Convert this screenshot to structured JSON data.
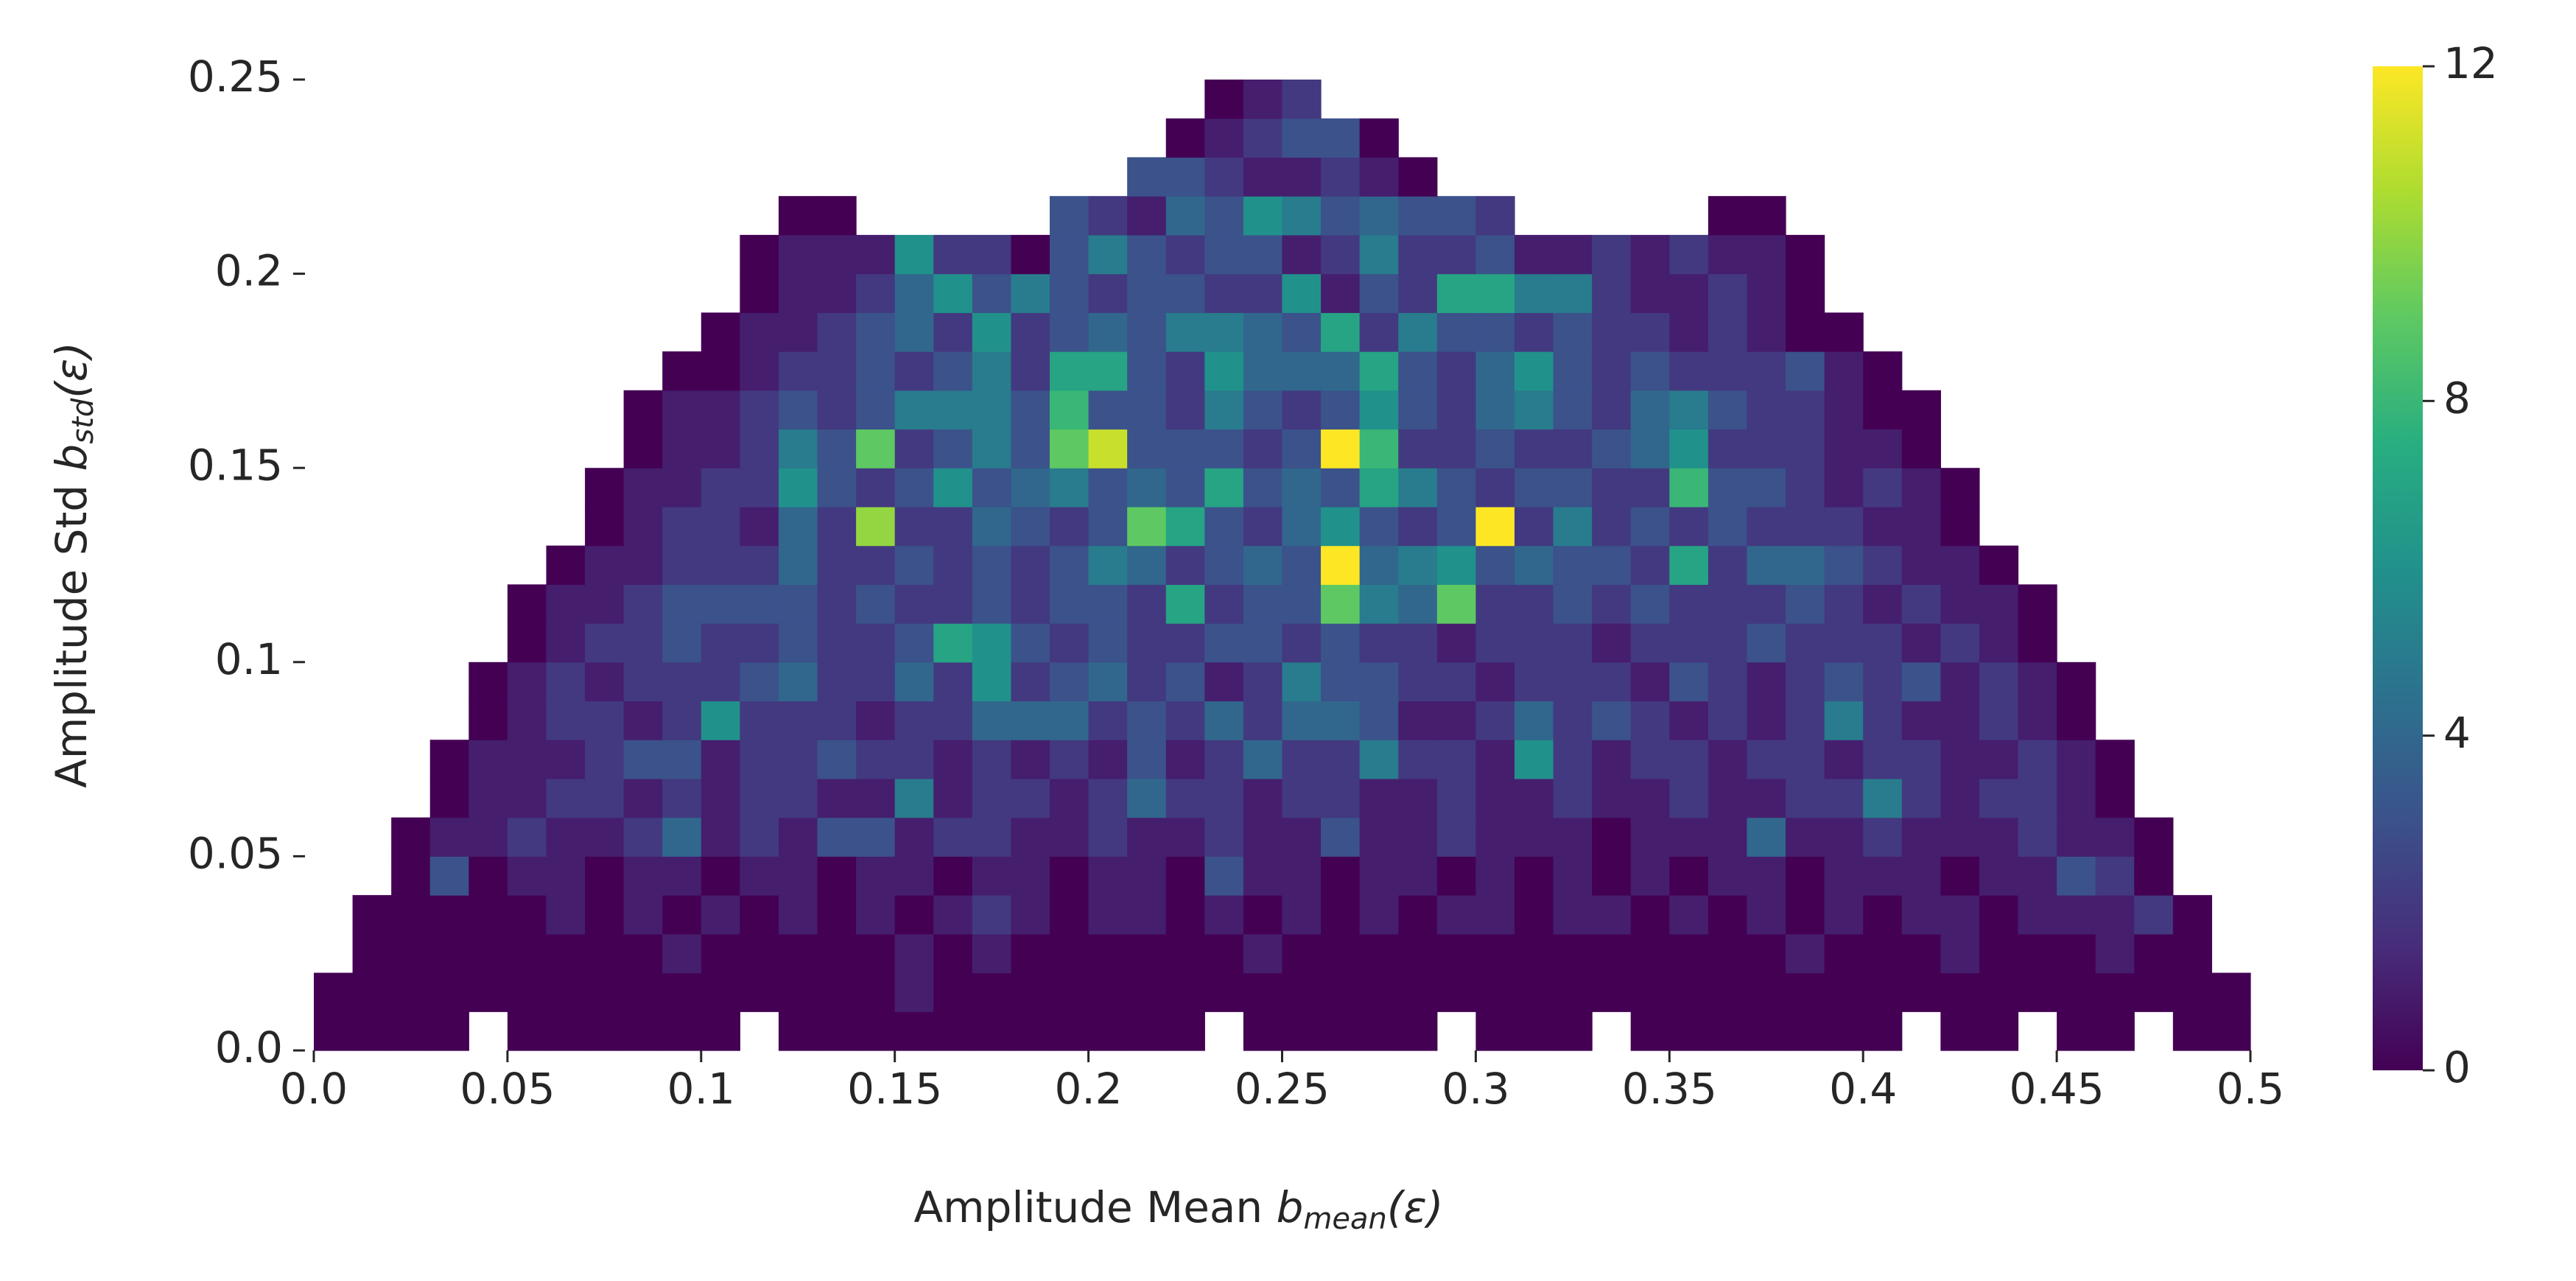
{
  "chart_data": {
    "type": "heatmap",
    "xlabel": [
      "Amplitude Mean ",
      "b",
      "mean",
      "(ε)"
    ],
    "ylabel": [
      "Amplitude Std ",
      "b",
      "std",
      "(ε)"
    ],
    "xlim": [
      0,
      0.5
    ],
    "ylim": [
      0,
      0.25
    ],
    "xticks": [
      {
        "value": 0,
        "label": "0.0"
      },
      0.05,
      0.1,
      0.15,
      0.2,
      0.25,
      0.3,
      0.35,
      0.4,
      0.45,
      0.5
    ],
    "yticks": [
      {
        "value": 0,
        "label": "0.0"
      },
      0.05,
      0.1,
      0.15,
      0.2,
      0.25
    ],
    "xbins": [
      0,
      0.01,
      0.02,
      0.03,
      0.04,
      0.05,
      0.06,
      0.07,
      0.08,
      0.09,
      0.1,
      0.11,
      0.12,
      0.13,
      0.14,
      0.15,
      0.16,
      0.17,
      0.18,
      0.19,
      0.2,
      0.21,
      0.22,
      0.23,
      0.24,
      0.25,
      0.26,
      0.27,
      0.28,
      0.29,
      0.3,
      0.31,
      0.32,
      0.33,
      0.34,
      0.35,
      0.36,
      0.37,
      0.38,
      0.39,
      0.4,
      0.41,
      0.42,
      0.43,
      0.44,
      0.45,
      0.46,
      0.47,
      0.48,
      0.49,
      0.5
    ],
    "ybins": [
      0,
      0.01,
      0.02,
      0.03,
      0.04,
      0.05,
      0.06,
      0.07,
      0.08,
      0.09,
      0.1,
      0.11,
      0.12,
      0.13,
      0.14,
      0.15,
      0.16,
      0.17,
      0.18,
      0.19,
      0.2,
      0.21,
      0.22,
      0.23,
      0.24,
      0.25
    ],
    "z": [
      [
        0,
        0,
        0,
        0,
        null,
        0,
        0,
        0,
        0,
        0,
        0,
        null,
        0,
        0,
        0,
        0,
        0,
        0,
        0,
        0,
        0,
        0,
        0,
        null,
        0,
        0,
        0,
        0,
        0,
        null,
        0,
        0,
        0,
        null,
        0,
        0,
        0,
        0,
        0,
        0,
        0,
        null,
        0,
        0,
        null,
        0,
        0,
        null,
        0,
        0
      ],
      [
        0,
        0,
        0,
        0,
        0,
        0,
        0,
        0,
        0,
        0,
        0,
        0,
        0,
        0,
        0,
        1,
        0,
        0,
        0,
        0,
        0,
        0,
        0,
        0,
        0,
        0,
        0,
        0,
        0,
        0,
        0,
        0,
        0,
        0,
        0,
        0,
        0,
        0,
        0,
        0,
        0,
        0,
        0,
        0,
        0,
        0,
        0,
        0,
        0,
        0
      ],
      [
        null,
        0,
        0,
        0,
        0,
        0,
        0,
        0,
        0,
        1,
        0,
        0,
        0,
        0,
        0,
        1,
        0,
        1,
        0,
        0,
        0,
        0,
        0,
        0,
        1,
        0,
        0,
        0,
        0,
        0,
        0,
        0,
        0,
        0,
        0,
        0,
        0,
        0,
        1,
        0,
        0,
        0,
        1,
        0,
        0,
        0,
        1,
        0,
        0,
        null
      ],
      [
        null,
        0,
        0,
        0,
        0,
        0,
        1,
        0,
        1,
        0,
        1,
        0,
        1,
        0,
        1,
        0,
        1,
        2,
        1,
        0,
        1,
        1,
        0,
        1,
        0,
        1,
        0,
        1,
        0,
        1,
        1,
        0,
        1,
        1,
        0,
        1,
        0,
        1,
        0,
        1,
        0,
        1,
        1,
        0,
        1,
        1,
        1,
        2,
        0,
        null
      ],
      [
        null,
        null,
        0,
        3,
        0,
        1,
        1,
        0,
        1,
        1,
        0,
        1,
        1,
        0,
        1,
        1,
        0,
        1,
        1,
        0,
        1,
        1,
        0,
        3,
        1,
        1,
        0,
        1,
        1,
        0,
        1,
        0,
        1,
        0,
        1,
        0,
        1,
        1,
        0,
        1,
        1,
        1,
        0,
        1,
        1,
        3,
        2,
        0,
        null,
        null
      ],
      [
        null,
        null,
        0,
        1,
        1,
        2,
        1,
        1,
        2,
        4,
        1,
        2,
        1,
        3,
        3,
        1,
        2,
        2,
        1,
        1,
        2,
        1,
        1,
        2,
        1,
        1,
        3,
        1,
        1,
        2,
        1,
        1,
        1,
        0,
        1,
        1,
        1,
        4,
        1,
        1,
        2,
        1,
        1,
        1,
        2,
        1,
        1,
        0,
        null,
        null
      ],
      [
        null,
        null,
        null,
        0,
        1,
        1,
        2,
        2,
        1,
        2,
        1,
        2,
        2,
        1,
        1,
        5,
        1,
        2,
        2,
        1,
        2,
        4,
        2,
        2,
        1,
        2,
        2,
        1,
        1,
        2,
        1,
        1,
        2,
        1,
        1,
        2,
        1,
        1,
        2,
        2,
        5,
        2,
        1,
        2,
        2,
        1,
        0,
        null,
        null,
        null
      ],
      [
        null,
        null,
        null,
        0,
        1,
        1,
        1,
        2,
        3,
        3,
        1,
        2,
        2,
        3,
        2,
        2,
        1,
        2,
        1,
        2,
        1,
        3,
        1,
        2,
        4,
        2,
        2,
        5,
        2,
        2,
        1,
        6,
        2,
        1,
        2,
        2,
        1,
        2,
        2,
        1,
        2,
        2,
        1,
        1,
        2,
        1,
        0,
        null,
        null,
        null
      ],
      [
        null,
        null,
        null,
        null,
        0,
        1,
        2,
        2,
        1,
        2,
        6,
        2,
        2,
        2,
        1,
        2,
        2,
        4,
        4,
        4,
        2,
        3,
        2,
        4,
        2,
        4,
        4,
        3,
        1,
        1,
        2,
        4,
        2,
        3,
        2,
        1,
        2,
        1,
        2,
        5,
        2,
        1,
        1,
        2,
        1,
        0,
        null,
        null,
        null,
        null
      ],
      [
        null,
        null,
        null,
        null,
        0,
        1,
        2,
        1,
        2,
        2,
        2,
        3,
        4,
        2,
        2,
        4,
        2,
        6,
        2,
        3,
        4,
        2,
        3,
        1,
        2,
        5,
        3,
        3,
        2,
        2,
        1,
        2,
        2,
        2,
        1,
        3,
        2,
        1,
        2,
        3,
        2,
        3,
        1,
        2,
        1,
        0,
        null,
        null,
        null,
        null
      ],
      [
        null,
        null,
        null,
        null,
        null,
        0,
        1,
        2,
        2,
        3,
        2,
        2,
        3,
        2,
        2,
        3,
        7,
        6,
        3,
        2,
        3,
        2,
        2,
        3,
        3,
        2,
        3,
        2,
        2,
        1,
        2,
        2,
        2,
        1,
        2,
        2,
        2,
        3,
        2,
        2,
        2,
        1,
        2,
        1,
        0,
        null,
        null,
        null,
        null,
        null
      ],
      [
        null,
        null,
        null,
        null,
        null,
        0,
        1,
        1,
        2,
        3,
        3,
        3,
        3,
        2,
        3,
        2,
        2,
        3,
        2,
        3,
        3,
        2,
        7,
        2,
        3,
        3,
        9,
        5,
        4,
        9,
        2,
        2,
        3,
        2,
        3,
        2,
        2,
        2,
        3,
        2,
        1,
        2,
        1,
        1,
        0,
        null,
        null,
        null,
        null,
        null
      ],
      [
        null,
        null,
        null,
        null,
        null,
        null,
        0,
        1,
        1,
        2,
        2,
        2,
        4,
        2,
        2,
        3,
        2,
        3,
        2,
        3,
        5,
        4,
        2,
        3,
        4,
        3,
        12,
        4,
        5,
        6,
        3,
        4,
        3,
        3,
        2,
        7,
        2,
        4,
        4,
        3,
        2,
        1,
        1,
        0,
        null,
        null,
        null,
        null,
        null,
        null
      ],
      [
        null,
        null,
        null,
        null,
        null,
        null,
        null,
        0,
        1,
        2,
        2,
        1,
        4,
        2,
        10,
        2,
        2,
        4,
        3,
        2,
        3,
        9,
        7,
        3,
        2,
        4,
        6,
        3,
        2,
        3,
        12,
        2,
        5,
        2,
        3,
        2,
        3,
        2,
        2,
        2,
        1,
        1,
        0,
        null,
        null,
        null,
        null,
        null,
        null,
        null
      ],
      [
        null,
        null,
        null,
        null,
        null,
        null,
        null,
        0,
        1,
        1,
        2,
        2,
        6,
        3,
        2,
        3,
        6,
        3,
        4,
        5,
        3,
        4,
        3,
        7,
        3,
        4,
        3,
        7,
        5,
        3,
        2,
        3,
        3,
        2,
        2,
        8,
        3,
        3,
        2,
        1,
        2,
        1,
        0,
        null,
        null,
        null,
        null,
        null,
        null,
        null
      ],
      [
        null,
        null,
        null,
        null,
        null,
        null,
        null,
        null,
        0,
        1,
        1,
        2,
        5,
        3,
        9,
        2,
        3,
        5,
        3,
        9,
        11,
        3,
        3,
        3,
        2,
        3,
        12,
        8,
        2,
        2,
        3,
        2,
        2,
        3,
        4,
        6,
        2,
        2,
        2,
        1,
        1,
        0,
        null,
        null,
        null,
        null,
        null,
        null,
        null,
        null
      ],
      [
        null,
        null,
        null,
        null,
        null,
        null,
        null,
        null,
        0,
        1,
        1,
        2,
        3,
        2,
        3,
        5,
        5,
        5,
        3,
        8,
        3,
        3,
        2,
        5,
        3,
        2,
        3,
        6,
        3,
        2,
        4,
        5,
        3,
        2,
        4,
        5,
        3,
        2,
        2,
        1,
        0,
        0,
        null,
        null,
        null,
        null,
        null,
        null,
        null,
        null
      ],
      [
        null,
        null,
        null,
        null,
        null,
        null,
        null,
        null,
        null,
        0,
        0,
        1,
        2,
        2,
        3,
        2,
        3,
        5,
        2,
        7,
        7,
        3,
        2,
        6,
        4,
        4,
        4,
        7,
        3,
        2,
        4,
        6,
        3,
        2,
        3,
        2,
        2,
        2,
        3,
        1,
        0,
        null,
        null,
        null,
        null,
        null,
        null,
        null,
        null,
        null
      ],
      [
        null,
        null,
        null,
        null,
        null,
        null,
        null,
        null,
        null,
        null,
        0,
        1,
        1,
        2,
        3,
        4,
        2,
        6,
        2,
        3,
        4,
        3,
        5,
        5,
        4,
        3,
        7,
        2,
        5,
        3,
        3,
        2,
        3,
        2,
        2,
        1,
        2,
        1,
        0,
        0,
        null,
        null,
        null,
        null,
        null,
        null,
        null,
        null,
        null,
        null
      ],
      [
        null,
        null,
        null,
        null,
        null,
        null,
        null,
        null,
        null,
        null,
        null,
        0,
        1,
        1,
        2,
        4,
        6,
        3,
        5,
        3,
        2,
        3,
        3,
        2,
        2,
        6,
        1,
        3,
        2,
        7,
        7,
        5,
        5,
        2,
        1,
        1,
        2,
        1,
        0,
        null,
        null,
        null,
        null,
        null,
        null,
        null,
        null,
        null,
        null,
        null
      ],
      [
        null,
        null,
        null,
        null,
        null,
        null,
        null,
        null,
        null,
        null,
        null,
        0,
        1,
        1,
        1,
        6,
        2,
        2,
        0,
        3,
        5,
        3,
        2,
        3,
        3,
        1,
        2,
        5,
        2,
        2,
        3,
        1,
        1,
        2,
        1,
        2,
        1,
        1,
        0,
        null,
        null,
        null,
        null,
        null,
        null,
        null,
        null,
        null,
        null,
        null
      ],
      [
        null,
        null,
        null,
        null,
        null,
        null,
        null,
        null,
        null,
        null,
        null,
        null,
        0,
        0,
        null,
        null,
        null,
        null,
        null,
        3,
        2,
        1,
        4,
        3,
        6,
        5,
        3,
        4,
        3,
        3,
        2,
        null,
        null,
        null,
        null,
        null,
        0,
        0,
        null,
        null,
        null,
        null,
        null,
        null,
        null,
        null,
        null,
        null,
        null,
        null
      ],
      [
        null,
        null,
        null,
        null,
        null,
        null,
        null,
        null,
        null,
        null,
        null,
        null,
        null,
        null,
        null,
        null,
        null,
        null,
        null,
        null,
        null,
        3,
        3,
        2,
        1,
        1,
        2,
        1,
        0,
        null,
        null,
        null,
        null,
        null,
        null,
        null,
        null,
        null,
        null,
        null,
        null,
        null,
        null,
        null,
        null,
        null,
        null,
        null,
        null,
        null
      ],
      [
        null,
        null,
        null,
        null,
        null,
        null,
        null,
        null,
        null,
        null,
        null,
        null,
        null,
        null,
        null,
        null,
        null,
        null,
        null,
        null,
        null,
        null,
        0,
        1,
        2,
        3,
        3,
        0,
        null,
        null,
        null,
        null,
        null,
        null,
        null,
        null,
        null,
        null,
        null,
        null,
        null,
        null,
        null,
        null,
        null,
        null,
        null,
        null,
        null,
        null
      ],
      [
        null,
        null,
        null,
        null,
        null,
        null,
        null,
        null,
        null,
        null,
        null,
        null,
        null,
        null,
        null,
        null,
        null,
        null,
        null,
        null,
        null,
        null,
        null,
        0,
        1,
        2,
        null,
        null,
        null,
        null,
        null,
        null,
        null,
        null,
        null,
        null,
        null,
        null,
        null,
        null,
        null,
        null,
        null,
        null,
        null,
        null,
        null,
        null,
        null,
        null
      ]
    ],
    "zlim": [
      0,
      12
    ],
    "zticks": [
      0,
      4,
      8,
      12
    ],
    "colorscale": [
      "#440154",
      "#472d7b",
      "#3b528b",
      "#2c728e",
      "#21918c",
      "#28ae80",
      "#5ec962",
      "#addc30",
      "#fde725"
    ]
  }
}
